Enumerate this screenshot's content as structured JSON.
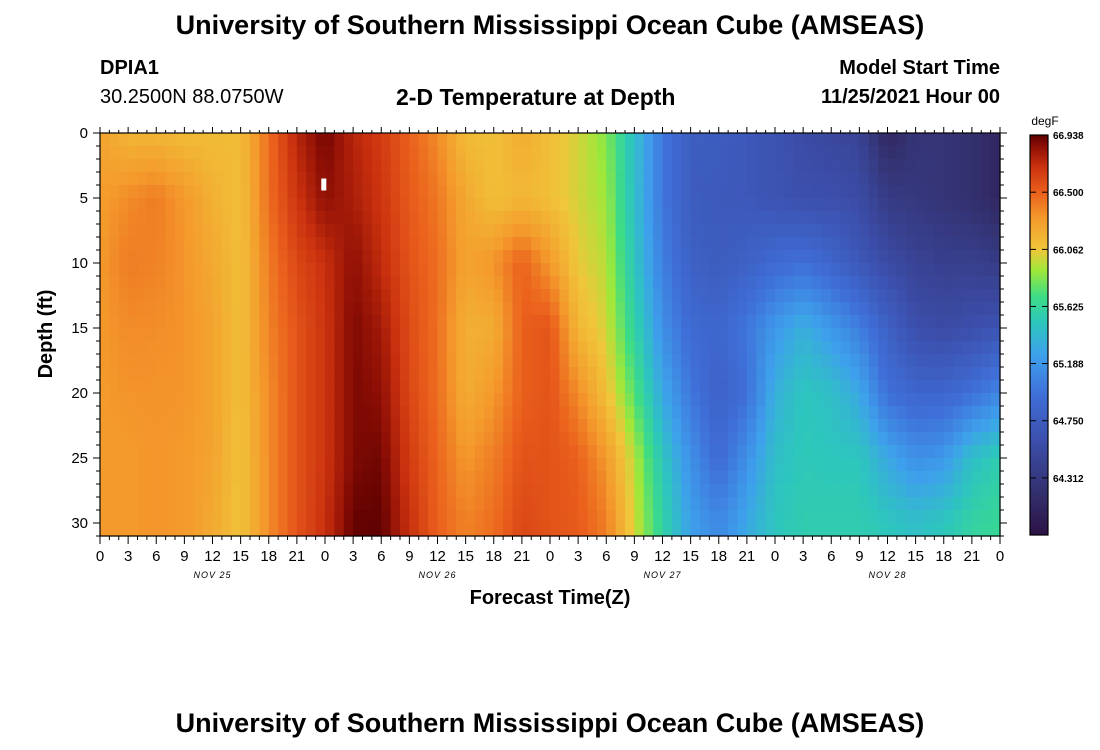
{
  "page": {
    "title": "University of Southern Mississippi Ocean Cube (AMSEAS)",
    "footer_title": "University of Southern Mississippi Ocean Cube (AMSEAS)",
    "station_id": "DPIA1",
    "coordinates": "30.2500N  88.0750W",
    "subtitle": "2-D Temperature at Depth",
    "model_start_label": "Model Start Time",
    "model_start_value": "11/25/2021 Hour 00"
  },
  "chart_data": {
    "type": "heatmap",
    "title": "2-D Temperature at Depth",
    "xlabel": "Forecast Time(Z)",
    "ylabel": "Depth (ft)",
    "xlim": [
      0,
      96
    ],
    "ylim": [
      0,
      31
    ],
    "y_inverted": true,
    "x_tick_labels": [
      "0",
      "3",
      "6",
      "9",
      "12",
      "15",
      "18",
      "21",
      "0",
      "3",
      "6",
      "9",
      "12",
      "15",
      "18",
      "21",
      "0",
      "3",
      "6",
      "9",
      "12",
      "15",
      "18",
      "21",
      "0",
      "3",
      "6",
      "9",
      "12",
      "15",
      "18",
      "21",
      "0"
    ],
    "y_tick_labels": [
      "0",
      "5",
      "10",
      "15",
      "20",
      "25",
      "30"
    ],
    "y_tick_values": [
      0,
      5,
      10,
      15,
      20,
      25,
      30
    ],
    "date_labels": [
      {
        "text": "NOV 25",
        "hour": 12
      },
      {
        "text": "NOV 26",
        "hour": 36
      },
      {
        "text": "NOV 27",
        "hour": 60
      },
      {
        "text": "NOV 28",
        "hour": 84
      }
    ],
    "colorbar": {
      "units": "degF",
      "min": 63.875,
      "max": 66.938,
      "tick_labels": [
        "66.938",
        "66.500",
        "66.062",
        "65.625",
        "65.188",
        "64.750",
        "64.312"
      ],
      "tick_values": [
        66.938,
        66.5,
        66.062,
        65.625,
        65.188,
        64.75,
        64.312
      ],
      "color_stops": [
        {
          "v": 63.875,
          "c": "#2c1245"
        },
        {
          "v": 64.2,
          "c": "#33306e"
        },
        {
          "v": 64.6,
          "c": "#3c4fac"
        },
        {
          "v": 64.95,
          "c": "#3f6fd8"
        },
        {
          "v": 65.25,
          "c": "#3ea0ec"
        },
        {
          "v": 65.5,
          "c": "#2dc6bd"
        },
        {
          "v": 65.7,
          "c": "#3ddc86"
        },
        {
          "v": 65.9,
          "c": "#9ee83a"
        },
        {
          "v": 66.06,
          "c": "#f0c63a"
        },
        {
          "v": 66.3,
          "c": "#f49a2c"
        },
        {
          "v": 66.5,
          "c": "#ea5f1c"
        },
        {
          "v": 66.7,
          "c": "#c9300e"
        },
        {
          "v": 66.85,
          "c": "#8e0f05"
        },
        {
          "v": 66.938,
          "c": "#5a0000"
        }
      ]
    },
    "columns": [
      {
        "hour": 0,
        "values": [
          66.25,
          66.28,
          66.3,
          66.3,
          66.3,
          66.3,
          66.3
        ]
      },
      {
        "hour": 3,
        "values": [
          66.15,
          66.35,
          66.4,
          66.35,
          66.32,
          66.3,
          66.3
        ]
      },
      {
        "hour": 6,
        "values": [
          66.15,
          66.4,
          66.38,
          66.34,
          66.32,
          66.32,
          66.32
        ]
      },
      {
        "hour": 9,
        "values": [
          66.12,
          66.3,
          66.32,
          66.32,
          66.32,
          66.3,
          66.3
        ]
      },
      {
        "hour": 12,
        "values": [
          66.12,
          66.18,
          66.22,
          66.25,
          66.25,
          66.25,
          66.22
        ]
      },
      {
        "hour": 15,
        "values": [
          66.12,
          66.1,
          66.1,
          66.1,
          66.1,
          66.08,
          66.08
        ]
      },
      {
        "hour": 18,
        "values": [
          66.45,
          66.45,
          66.4,
          66.38,
          66.35,
          66.35,
          66.35
        ]
      },
      {
        "hour": 21,
        "values": [
          66.75,
          66.68,
          66.6,
          66.55,
          66.55,
          66.55,
          66.55
        ]
      },
      {
        "hour": 24,
        "values": [
          66.9,
          66.85,
          66.7,
          66.68,
          66.68,
          66.68,
          66.7
        ]
      },
      {
        "hour": 27,
        "values": [
          66.75,
          66.78,
          66.85,
          66.88,
          66.88,
          66.88,
          66.92
        ]
      },
      {
        "hour": 30,
        "values": [
          66.65,
          66.68,
          66.72,
          66.8,
          66.85,
          66.9,
          66.93
        ]
      },
      {
        "hour": 33,
        "values": [
          66.5,
          66.52,
          66.55,
          66.58,
          66.6,
          66.65,
          66.7
        ]
      },
      {
        "hour": 36,
        "values": [
          66.35,
          66.42,
          66.45,
          66.45,
          66.45,
          66.48,
          66.5
        ]
      },
      {
        "hour": 39,
        "values": [
          66.12,
          66.22,
          66.25,
          66.18,
          66.2,
          66.3,
          66.38
        ]
      },
      {
        "hour": 42,
        "values": [
          66.1,
          66.1,
          66.32,
          66.2,
          66.3,
          66.4,
          66.45
        ]
      },
      {
        "hour": 45,
        "values": [
          66.2,
          66.15,
          66.5,
          66.5,
          66.5,
          66.55,
          66.6
        ]
      },
      {
        "hour": 48,
        "values": [
          66.1,
          66.1,
          66.3,
          66.55,
          66.55,
          66.55,
          66.55
        ]
      },
      {
        "hour": 51,
        "values": [
          66.0,
          66.0,
          66.05,
          66.15,
          66.35,
          66.5,
          66.52
        ]
      },
      {
        "hour": 54,
        "values": [
          65.85,
          65.9,
          65.95,
          66.0,
          66.1,
          66.3,
          66.4
        ]
      },
      {
        "hour": 57,
        "values": [
          65.45,
          65.45,
          65.5,
          65.6,
          65.75,
          65.95,
          66.0
        ]
      },
      {
        "hour": 60,
        "values": [
          65.0,
          65.0,
          65.05,
          65.15,
          65.3,
          65.5,
          65.6
        ]
      },
      {
        "hour": 63,
        "values": [
          64.75,
          64.75,
          64.8,
          64.9,
          65.0,
          65.15,
          65.25
        ]
      },
      {
        "hour": 66,
        "values": [
          64.75,
          64.72,
          64.75,
          64.85,
          64.8,
          64.9,
          65.1
        ]
      },
      {
        "hour": 69,
        "values": [
          64.7,
          64.7,
          64.8,
          65.0,
          64.95,
          65.15,
          65.3
        ]
      },
      {
        "hour": 72,
        "values": [
          64.65,
          64.65,
          64.9,
          65.2,
          65.35,
          65.45,
          65.5
        ]
      },
      {
        "hour": 75,
        "values": [
          64.55,
          64.6,
          64.95,
          65.35,
          65.5,
          65.52,
          65.55
        ]
      },
      {
        "hour": 78,
        "values": [
          64.5,
          64.6,
          64.85,
          65.2,
          65.45,
          65.5,
          65.55
        ]
      },
      {
        "hour": 81,
        "values": [
          64.45,
          64.55,
          64.7,
          65.05,
          65.3,
          65.5,
          65.55
        ]
      },
      {
        "hour": 84,
        "values": [
          64.1,
          64.35,
          64.55,
          64.8,
          64.95,
          65.3,
          65.5
        ]
      },
      {
        "hour": 87,
        "values": [
          64.25,
          64.3,
          64.45,
          64.6,
          64.85,
          65.15,
          65.45
        ]
      },
      {
        "hour": 90,
        "values": [
          64.25,
          64.25,
          64.4,
          64.55,
          64.85,
          65.2,
          65.5
        ]
      },
      {
        "hour": 93,
        "values": [
          64.2,
          64.2,
          64.4,
          64.6,
          64.95,
          65.45,
          65.6
        ]
      },
      {
        "hour": 96,
        "values": [
          64.1,
          64.1,
          64.35,
          64.65,
          65.1,
          65.55,
          65.65
        ]
      }
    ],
    "column_depths": [
      0,
      5,
      10,
      15,
      20,
      25,
      30
    ]
  }
}
